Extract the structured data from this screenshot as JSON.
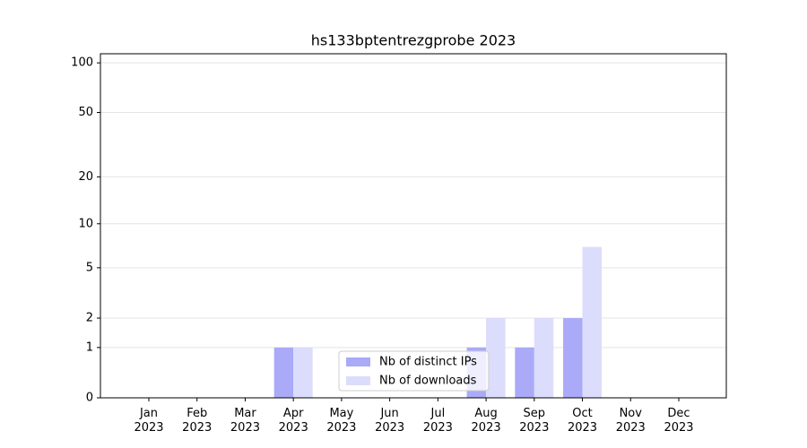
{
  "chart_data": {
    "type": "bar",
    "title": "hs133bptentrezgprobe 2023",
    "categories": [
      "Jan 2023",
      "Feb 2023",
      "Mar 2023",
      "Apr 2023",
      "May 2023",
      "Jun 2023",
      "Jul 2023",
      "Aug 2023",
      "Sep 2023",
      "Oct 2023",
      "Nov 2023",
      "Dec 2023"
    ],
    "series": [
      {
        "name": "Nb of distinct IPs",
        "color": "#aaaaf8",
        "values": [
          0,
          0,
          0,
          1,
          0,
          0,
          0,
          1,
          1,
          2,
          0,
          0
        ]
      },
      {
        "name": "Nb of downloads",
        "color": "#dcdcfc",
        "values": [
          0,
          0,
          0,
          1,
          0,
          0,
          0,
          2,
          2,
          7,
          0,
          0
        ]
      }
    ],
    "yscale": "log1p",
    "ylim": [
      0,
      113.5
    ],
    "yticks": [
      0,
      1,
      2,
      5,
      10,
      20,
      50,
      100
    ],
    "grid": true,
    "legend": "lower center"
  }
}
